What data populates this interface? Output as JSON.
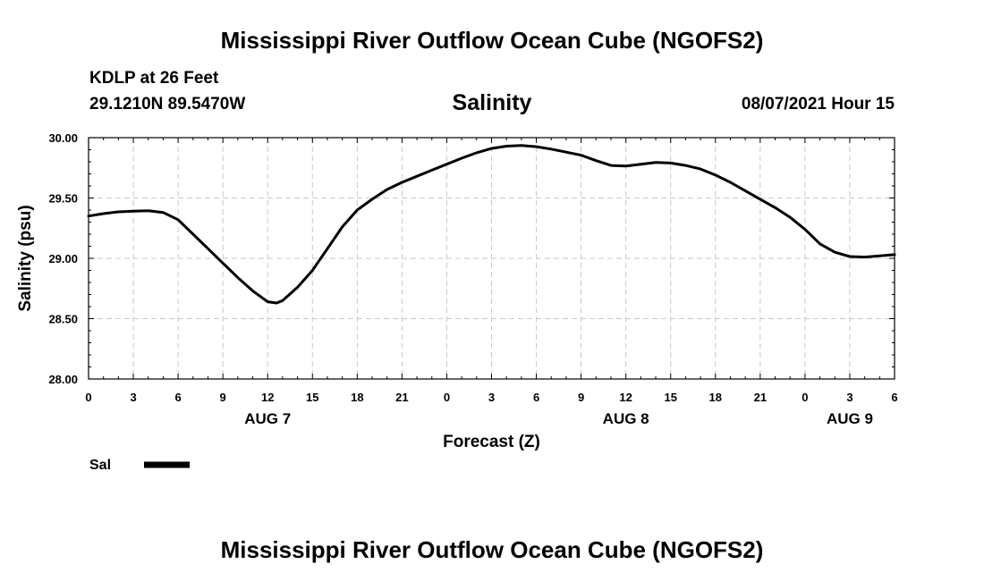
{
  "title": "Mississippi River Outflow Ocean Cube (NGOFS2)",
  "footer_title": "Mississippi River Outflow Ocean Cube (NGOFS2)",
  "station": "KDLP at 26 Feet",
  "coordinates": "29.1210N  89.5470W",
  "variable": "Salinity",
  "datetime": "08/07/2021 Hour 15",
  "colors": {
    "line": "#000000",
    "grid": "#c8c8c8",
    "background": "#ffffff"
  },
  "chart_data": {
    "type": "line",
    "title": "Salinity",
    "xlabel": "Forecast (Z)",
    "ylabel": "Salinity (psu)",
    "xlim": [
      0,
      54
    ],
    "ylim": [
      28.0,
      30.0
    ],
    "grid": true,
    "yticks": [
      28.0,
      28.5,
      29.0,
      29.5,
      30.0
    ],
    "ytick_labels": [
      "28.00",
      "28.50",
      "29.00",
      "29.50",
      "30.00"
    ],
    "xticks": [
      0,
      3,
      6,
      9,
      12,
      15,
      18,
      21,
      24,
      27,
      30,
      33,
      36,
      39,
      42,
      45,
      48,
      51,
      54
    ],
    "xtick_labels": [
      "0",
      "3",
      "6",
      "9",
      "12",
      "15",
      "18",
      "21",
      "0",
      "3",
      "6",
      "9",
      "12",
      "15",
      "18",
      "21",
      "0",
      "3",
      "6"
    ],
    "date_labels": [
      {
        "label": "AUG 7",
        "x": 12
      },
      {
        "label": "AUG 8",
        "x": 36
      },
      {
        "label": "AUG 9",
        "x": 51
      }
    ],
    "legend_position": "bottom-left",
    "series": [
      {
        "name": "Sal",
        "x": [
          0,
          1,
          2,
          3,
          4,
          5,
          6,
          7,
          8,
          9,
          10,
          11,
          12,
          12.6,
          13,
          14,
          15,
          16,
          17,
          18,
          19,
          20,
          21,
          22,
          23,
          24,
          25,
          26,
          27,
          28,
          29,
          30,
          31,
          32,
          33,
          34,
          35,
          36,
          37,
          38,
          39,
          40,
          41,
          42,
          43,
          44,
          45,
          46,
          47,
          48,
          49,
          50,
          51,
          52,
          53,
          54
        ],
        "values": [
          29.35,
          29.37,
          29.385,
          29.39,
          29.395,
          29.38,
          29.32,
          29.2,
          29.08,
          28.96,
          28.84,
          28.73,
          28.64,
          28.63,
          28.65,
          28.76,
          28.9,
          29.08,
          29.26,
          29.4,
          29.49,
          29.57,
          29.63,
          29.68,
          29.73,
          29.78,
          29.83,
          29.875,
          29.91,
          29.93,
          29.935,
          29.925,
          29.905,
          29.88,
          29.855,
          29.81,
          29.77,
          29.765,
          29.78,
          29.795,
          29.79,
          29.77,
          29.74,
          29.69,
          29.63,
          29.56,
          29.49,
          29.42,
          29.34,
          29.24,
          29.12,
          29.05,
          29.015,
          29.01,
          29.02,
          29.03
        ]
      }
    ]
  }
}
